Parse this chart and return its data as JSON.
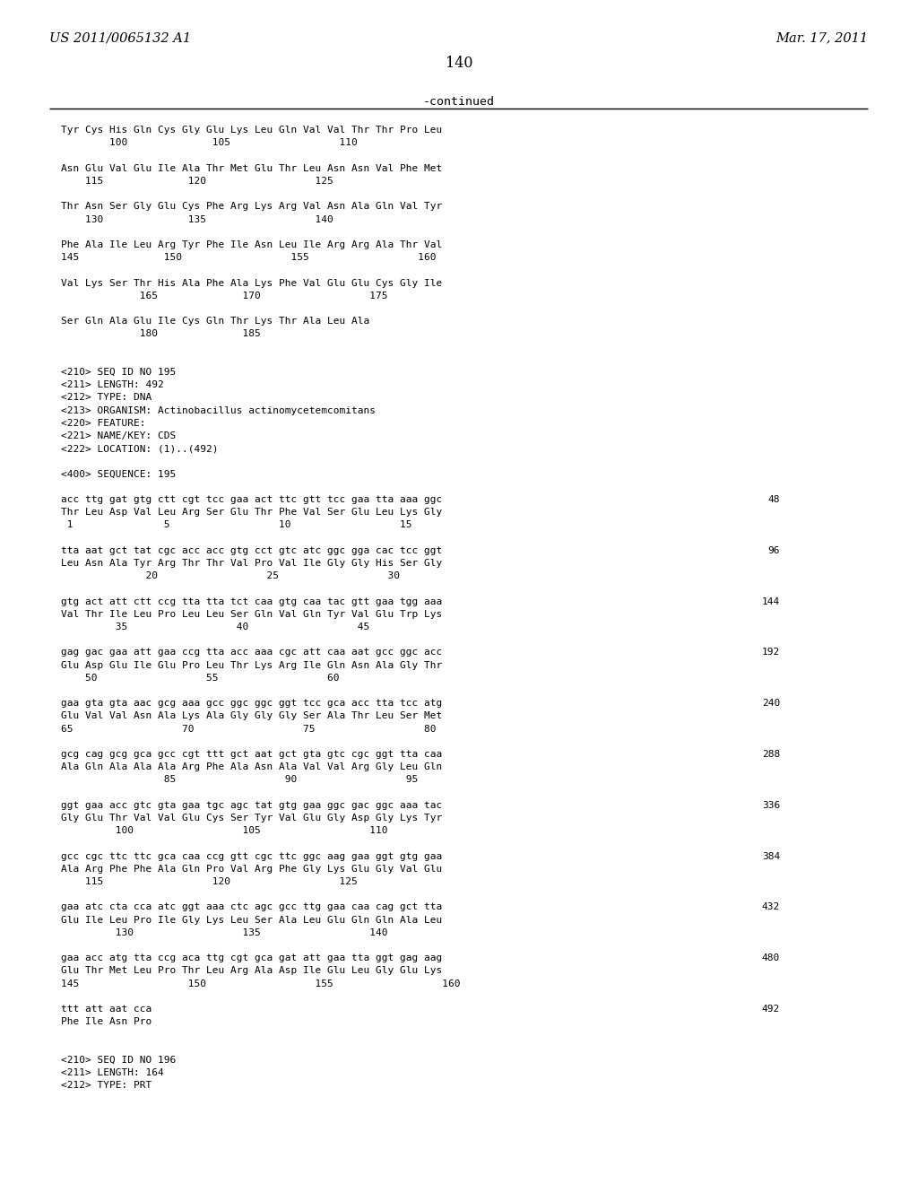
{
  "header_left": "US 2011/0065132 A1",
  "header_right": "Mar. 17, 2011",
  "page_number": "140",
  "continued_label": "-continued",
  "background_color": "#ffffff",
  "text_color": "#000000",
  "content": [
    [
      "Tyr Cys His Gln Cys Gly Glu Lys Leu Gln Val Val Thr Thr Pro Leu",
      ""
    ],
    [
      "        100              105                  110",
      ""
    ],
    [
      "",
      ""
    ],
    [
      "Asn Glu Val Glu Ile Ala Thr Met Glu Thr Leu Asn Asn Val Phe Met",
      ""
    ],
    [
      "    115              120                  125",
      ""
    ],
    [
      "",
      ""
    ],
    [
      "Thr Asn Ser Gly Glu Cys Phe Arg Lys Arg Val Asn Ala Gln Val Tyr",
      ""
    ],
    [
      "    130              135                  140",
      ""
    ],
    [
      "",
      ""
    ],
    [
      "Phe Ala Ile Leu Arg Tyr Phe Ile Asn Leu Ile Arg Arg Ala Thr Val",
      ""
    ],
    [
      "145              150                  155                  160",
      ""
    ],
    [
      "",
      ""
    ],
    [
      "Val Lys Ser Thr His Ala Phe Ala Lys Phe Val Glu Glu Cys Gly Ile",
      ""
    ],
    [
      "             165              170                  175",
      ""
    ],
    [
      "",
      ""
    ],
    [
      "Ser Gln Ala Glu Ile Cys Gln Thr Lys Thr Ala Leu Ala",
      ""
    ],
    [
      "             180              185",
      ""
    ],
    [
      "",
      ""
    ],
    [
      "",
      ""
    ],
    [
      "<210> SEQ ID NO 195",
      ""
    ],
    [
      "<211> LENGTH: 492",
      ""
    ],
    [
      "<212> TYPE: DNA",
      ""
    ],
    [
      "<213> ORGANISM: Actinobacillus actinomycetemcomitans",
      ""
    ],
    [
      "<220> FEATURE:",
      ""
    ],
    [
      "<221> NAME/KEY: CDS",
      ""
    ],
    [
      "<222> LOCATION: (1)..(492)",
      ""
    ],
    [
      "",
      ""
    ],
    [
      "<400> SEQUENCE: 195",
      ""
    ],
    [
      "",
      ""
    ],
    [
      "acc ttg gat gtg ctt cgt tcc gaa act ttc gtt tcc gaa tta aaa ggc",
      "48"
    ],
    [
      "Thr Leu Asp Val Leu Arg Ser Glu Thr Phe Val Ser Glu Leu Lys Gly",
      ""
    ],
    [
      " 1               5                  10                  15",
      ""
    ],
    [
      "",
      ""
    ],
    [
      "tta aat gct tat cgc acc acc gtg cct gtc atc ggc gga cac tcc ggt",
      "96"
    ],
    [
      "Leu Asn Ala Tyr Arg Thr Thr Val Pro Val Ile Gly Gly His Ser Gly",
      ""
    ],
    [
      "              20                  25                  30",
      ""
    ],
    [
      "",
      ""
    ],
    [
      "gtg act att ctt ccg tta tta tct caa gtg caa tac gtt gaa tgg aaa",
      "144"
    ],
    [
      "Val Thr Ile Leu Pro Leu Leu Ser Gln Val Gln Tyr Val Glu Trp Lys",
      ""
    ],
    [
      "         35                  40                  45",
      ""
    ],
    [
      "",
      ""
    ],
    [
      "gag gac gaa att gaa ccg tta acc aaa cgc att caa aat gcc ggc acc",
      "192"
    ],
    [
      "Glu Asp Glu Ile Glu Pro Leu Thr Lys Arg Ile Gln Asn Ala Gly Thr",
      ""
    ],
    [
      "    50                  55                  60",
      ""
    ],
    [
      "",
      ""
    ],
    [
      "gaa gta gta aac gcg aaa gcc ggc ggc ggt tcc gca acc tta tcc atg",
      "240"
    ],
    [
      "Glu Val Val Asn Ala Lys Ala Gly Gly Gly Ser Ala Thr Leu Ser Met",
      ""
    ],
    [
      "65                  70                  75                  80",
      ""
    ],
    [
      "",
      ""
    ],
    [
      "gcg cag gcg gca gcc cgt ttt gct aat gct gta gtc cgc ggt tta caa",
      "288"
    ],
    [
      "Ala Gln Ala Ala Ala Arg Phe Ala Asn Ala Val Val Arg Gly Leu Gln",
      ""
    ],
    [
      "                 85                  90                  95",
      ""
    ],
    [
      "",
      ""
    ],
    [
      "ggt gaa acc gtc gta gaa tgc agc tat gtg gaa ggc gac ggc aaa tac",
      "336"
    ],
    [
      "Gly Glu Thr Val Val Glu Cys Ser Tyr Val Glu Gly Asp Gly Lys Tyr",
      ""
    ],
    [
      "         100                  105                  110",
      ""
    ],
    [
      "",
      ""
    ],
    [
      "gcc cgc ttc ttc gca caa ccg gtt cgc ttc ggc aag gaa ggt gtg gaa",
      "384"
    ],
    [
      "Ala Arg Phe Phe Ala Gln Pro Val Arg Phe Gly Lys Glu Gly Val Glu",
      ""
    ],
    [
      "    115                  120                  125",
      ""
    ],
    [
      "",
      ""
    ],
    [
      "gaa atc cta cca atc ggt aaa ctc agc gcc ttg gaa caa cag gct tta",
      "432"
    ],
    [
      "Glu Ile Leu Pro Ile Gly Lys Leu Ser Ala Leu Glu Gln Gln Ala Leu",
      ""
    ],
    [
      "         130                  135                  140",
      ""
    ],
    [
      "",
      ""
    ],
    [
      "gaa acc atg tta ccg aca ttg cgt gca gat att gaa tta ggt gag aag",
      "480"
    ],
    [
      "Glu Thr Met Leu Pro Thr Leu Arg Ala Asp Ile Glu Leu Gly Glu Lys",
      ""
    ],
    [
      "145                  150                  155                  160",
      ""
    ],
    [
      "",
      ""
    ],
    [
      "ttt att aat cca",
      "492"
    ],
    [
      "Phe Ile Asn Pro",
      ""
    ],
    [
      "",
      ""
    ],
    [
      "",
      ""
    ],
    [
      "<210> SEQ ID NO 196",
      ""
    ],
    [
      "<211> LENGTH: 164",
      ""
    ],
    [
      "<212> TYPE: PRT",
      ""
    ]
  ]
}
